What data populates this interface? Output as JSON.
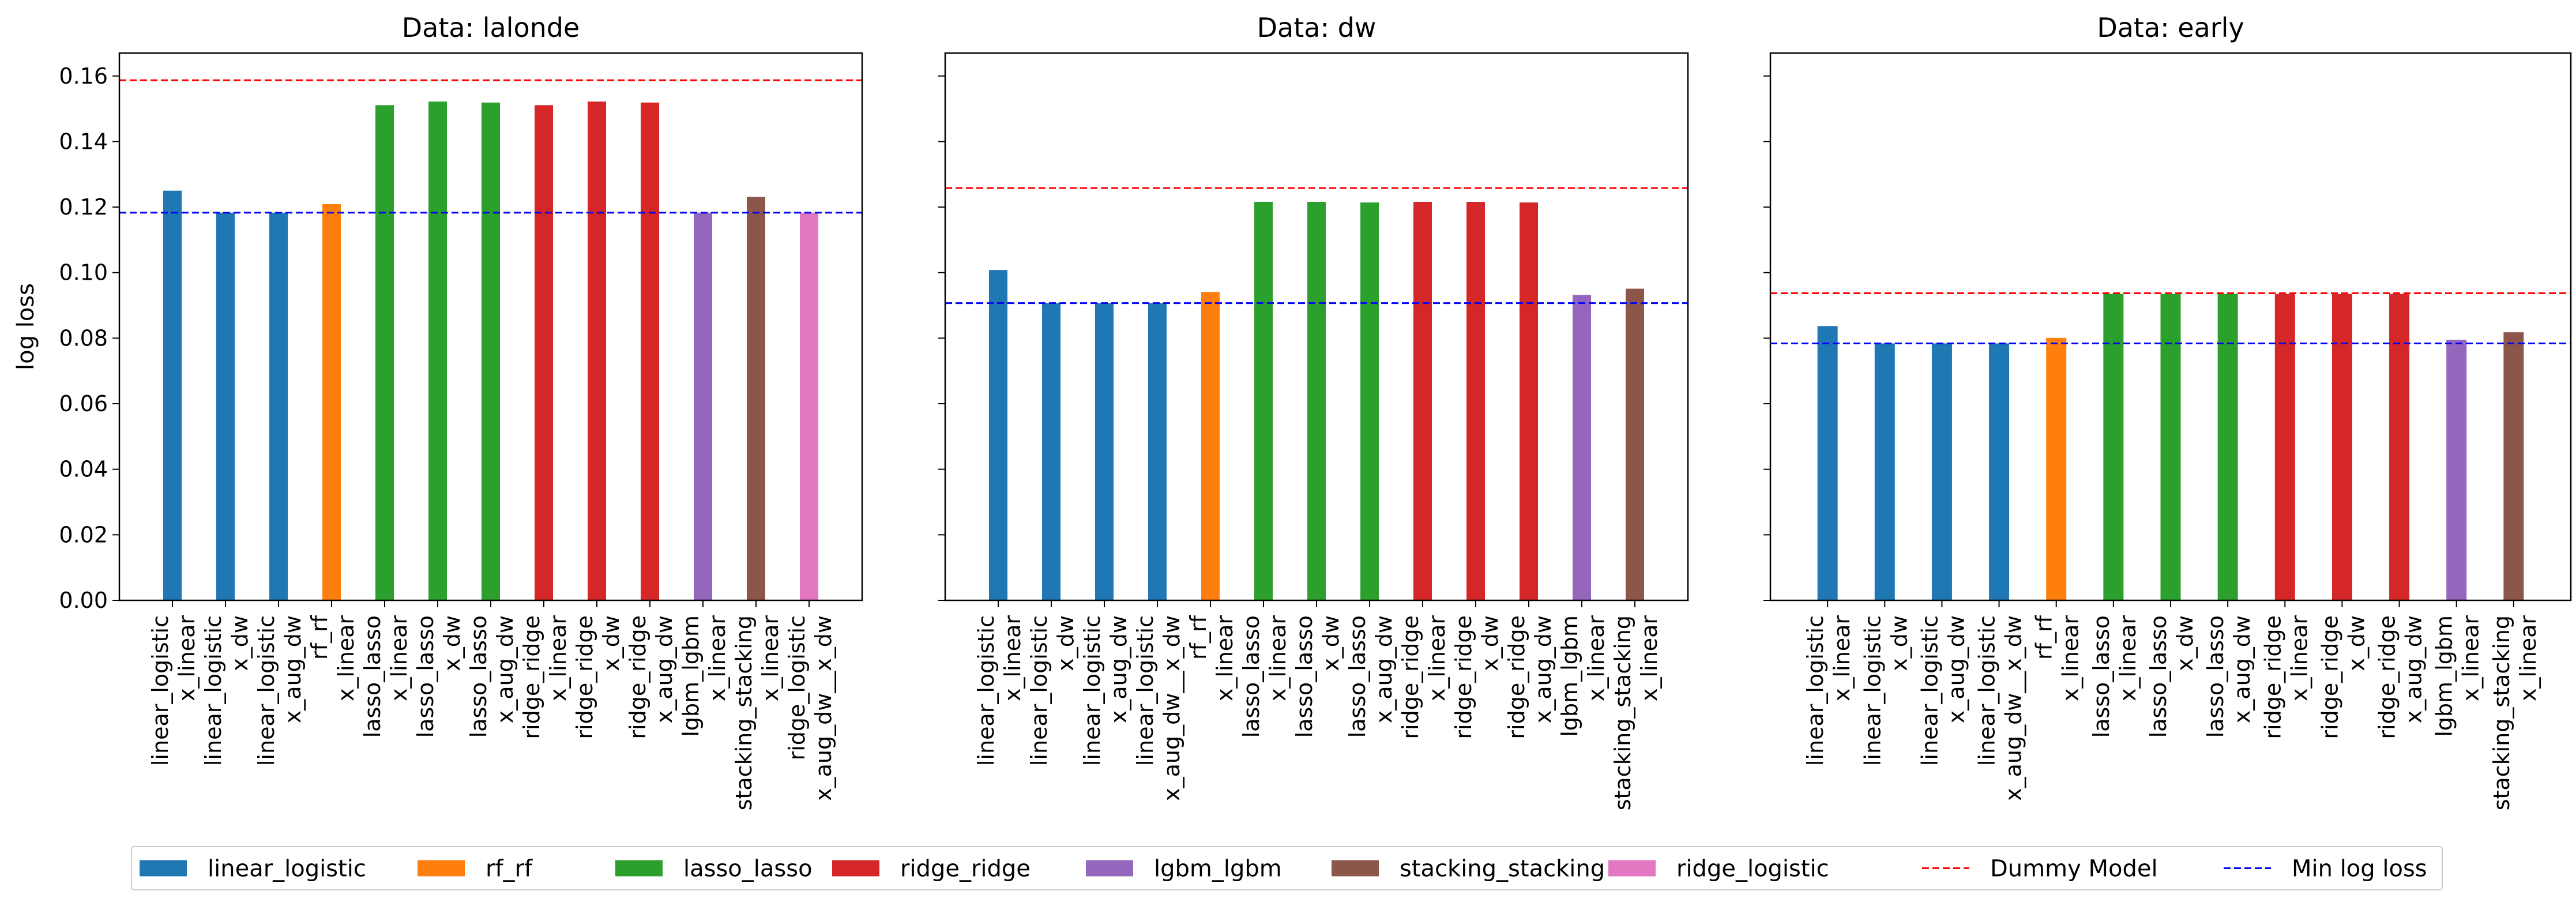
{
  "figure": {
    "legend": [
      {
        "label": "linear_logistic",
        "kind": "patch",
        "color": "#1f77b4"
      },
      {
        "label": "rf_rf",
        "kind": "patch",
        "color": "#ff7f0e"
      },
      {
        "label": "lasso_lasso",
        "kind": "patch",
        "color": "#2ca02c"
      },
      {
        "label": "ridge_ridge",
        "kind": "patch",
        "color": "#d62728"
      },
      {
        "label": "lgbm_lgbm",
        "kind": "patch",
        "color": "#9467bd"
      },
      {
        "label": "stacking_stacking",
        "kind": "patch",
        "color": "#8c564b"
      },
      {
        "label": "ridge_logistic",
        "kind": "patch",
        "color": "#e377c2"
      },
      {
        "label": "Dummy Model",
        "kind": "dashed",
        "color": "#ff0000"
      },
      {
        "label": "Min log loss",
        "kind": "dashed",
        "color": "#0000ff"
      }
    ]
  },
  "chart_data": [
    {
      "type": "bar",
      "title": "Data: lalonde",
      "xlabel": "",
      "ylabel": "log loss",
      "ylim": [
        0,
        0.167
      ],
      "yticks": [
        "0.00",
        "0.02",
        "0.04",
        "0.06",
        "0.08",
        "0.10",
        "0.12",
        "0.14",
        "0.16"
      ],
      "categories": [
        [
          "linear_logistic",
          "x_linear"
        ],
        [
          "linear_logistic",
          "x_dw"
        ],
        [
          "linear_logistic",
          "x_aug_dw"
        ],
        [
          "rf_rf",
          "x_linear"
        ],
        [
          "lasso_lasso",
          "x_linear"
        ],
        [
          "lasso_lasso",
          "x_dw"
        ],
        [
          "lasso_lasso",
          "x_aug_dw"
        ],
        [
          "ridge_ridge",
          "x_linear"
        ],
        [
          "ridge_ridge",
          "x_dw"
        ],
        [
          "ridge_ridge",
          "x_aug_dw"
        ],
        [
          "lgbm_lgbm",
          "x_linear"
        ],
        [
          "stacking_stacking",
          "x_linear"
        ],
        [
          "ridge_logistic",
          "x_aug_dw__x_dw"
        ]
      ],
      "series_of_bar": [
        "linear_logistic",
        "linear_logistic",
        "linear_logistic",
        "rf_rf",
        "lasso_lasso",
        "lasso_lasso",
        "lasso_lasso",
        "ridge_ridge",
        "ridge_ridge",
        "ridge_ridge",
        "lgbm_lgbm",
        "stacking_stacking",
        "ridge_logistic"
      ],
      "values": [
        0.125,
        0.1183,
        0.1183,
        0.1209,
        0.1511,
        0.1522,
        0.1519,
        0.1511,
        0.1522,
        0.1519,
        0.1183,
        0.1231,
        0.1183
      ],
      "hlines": {
        "Dummy Model": 0.1587,
        "Min log loss": 0.1183
      }
    },
    {
      "type": "bar",
      "title": "Data: dw",
      "xlabel": "",
      "ylabel": "",
      "ylim": [
        0,
        0.167
      ],
      "yticks": [
        "",
        "",
        "",
        "",
        "",
        "",
        "",
        "",
        ""
      ],
      "categories": [
        [
          "linear_logistic",
          "x_linear"
        ],
        [
          "linear_logistic",
          "x_dw"
        ],
        [
          "linear_logistic",
          "x_aug_dw"
        ],
        [
          "linear_logistic",
          "x_aug_dw__x_dw"
        ],
        [
          "rf_rf",
          "x_linear"
        ],
        [
          "lasso_lasso",
          "x_linear"
        ],
        [
          "lasso_lasso",
          "x_dw"
        ],
        [
          "lasso_lasso",
          "x_aug_dw"
        ],
        [
          "ridge_ridge",
          "x_linear"
        ],
        [
          "ridge_ridge",
          "x_dw"
        ],
        [
          "ridge_ridge",
          "x_aug_dw"
        ],
        [
          "lgbm_lgbm",
          "x_linear"
        ],
        [
          "stacking_stacking",
          "x_linear"
        ]
      ],
      "series_of_bar": [
        "linear_logistic",
        "linear_logistic",
        "linear_logistic",
        "linear_logistic",
        "rf_rf",
        "lasso_lasso",
        "lasso_lasso",
        "lasso_lasso",
        "ridge_ridge",
        "ridge_ridge",
        "ridge_ridge",
        "lgbm_lgbm",
        "stacking_stacking"
      ],
      "values": [
        0.1008,
        0.0907,
        0.0907,
        0.0907,
        0.0941,
        0.1216,
        0.1216,
        0.1214,
        0.1216,
        0.1216,
        0.1214,
        0.0932,
        0.0951
      ],
      "hlines": {
        "Dummy Model": 0.1258,
        "Min log loss": 0.0907
      }
    },
    {
      "type": "bar",
      "title": "Data: early",
      "xlabel": "",
      "ylabel": "",
      "ylim": [
        0,
        0.167
      ],
      "yticks": [
        "",
        "",
        "",
        "",
        "",
        "",
        "",
        "",
        ""
      ],
      "categories": [
        [
          "linear_logistic",
          "x_linear"
        ],
        [
          "linear_logistic",
          "x_dw"
        ],
        [
          "linear_logistic",
          "x_aug_dw"
        ],
        [
          "linear_logistic",
          "x_aug_dw__x_dw"
        ],
        [
          "rf_rf",
          "x_linear"
        ],
        [
          "lasso_lasso",
          "x_linear"
        ],
        [
          "lasso_lasso",
          "x_dw"
        ],
        [
          "lasso_lasso",
          "x_aug_dw"
        ],
        [
          "ridge_ridge",
          "x_linear"
        ],
        [
          "ridge_ridge",
          "x_dw"
        ],
        [
          "ridge_ridge",
          "x_aug_dw"
        ],
        [
          "lgbm_lgbm",
          "x_linear"
        ],
        [
          "stacking_stacking",
          "x_linear"
        ]
      ],
      "series_of_bar": [
        "linear_logistic",
        "linear_logistic",
        "linear_logistic",
        "linear_logistic",
        "rf_rf",
        "lasso_lasso",
        "lasso_lasso",
        "lasso_lasso",
        "ridge_ridge",
        "ridge_ridge",
        "ridge_ridge",
        "lgbm_lgbm",
        "stacking_stacking"
      ],
      "values": [
        0.0837,
        0.0784,
        0.0784,
        0.0784,
        0.0801,
        0.0935,
        0.0935,
        0.0935,
        0.0935,
        0.0935,
        0.0935,
        0.0795,
        0.0818
      ],
      "hlines": {
        "Dummy Model": 0.0937,
        "Min log loss": 0.0784
      }
    }
  ]
}
